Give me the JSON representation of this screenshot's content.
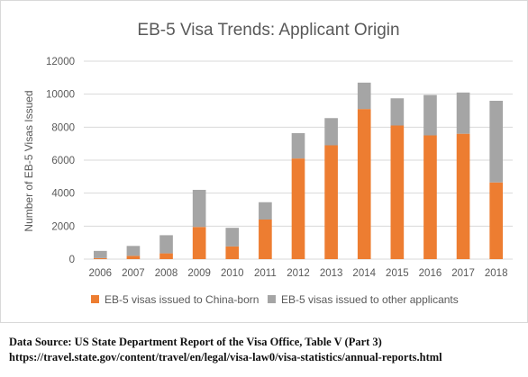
{
  "chart_data": {
    "type": "bar",
    "stacked": true,
    "title": "EB-5 Visa Trends: Applicant Origin",
    "xlabel": "",
    "ylabel": "Number of EB-5 Visas Issued",
    "ylim": [
      0,
      12000
    ],
    "yticks": [
      "0",
      "2000",
      "4000",
      "6000",
      "8000",
      "10000",
      "12000"
    ],
    "grid": true,
    "legend_position": "bottom",
    "categories": [
      "2006",
      "2007",
      "2008",
      "2009",
      "2010",
      "2011",
      "2012",
      "2013",
      "2014",
      "2015",
      "2016",
      "2017",
      "2018"
    ],
    "series": [
      {
        "name": "EB-5 visas issued to China-born",
        "color": "#ED7D31",
        "values": [
          60,
          200,
          350,
          1950,
          770,
          2400,
          6100,
          6900,
          9100,
          8100,
          7500,
          7600,
          4650
        ]
      },
      {
        "name": "EB-5 visas issued to other applicants",
        "color": "#A5A5A5",
        "values": [
          440,
          600,
          1100,
          2250,
          1130,
          1050,
          1540,
          1650,
          1600,
          1650,
          2450,
          2500,
          4950
        ]
      }
    ]
  },
  "source": {
    "line1": "Data Source: US State Department Report of the Visa Office, Table V (Part 3)",
    "line2": "https://travel.state.gov/content/travel/en/legal/visa-law0/visa-statistics/annual-reports.html"
  }
}
